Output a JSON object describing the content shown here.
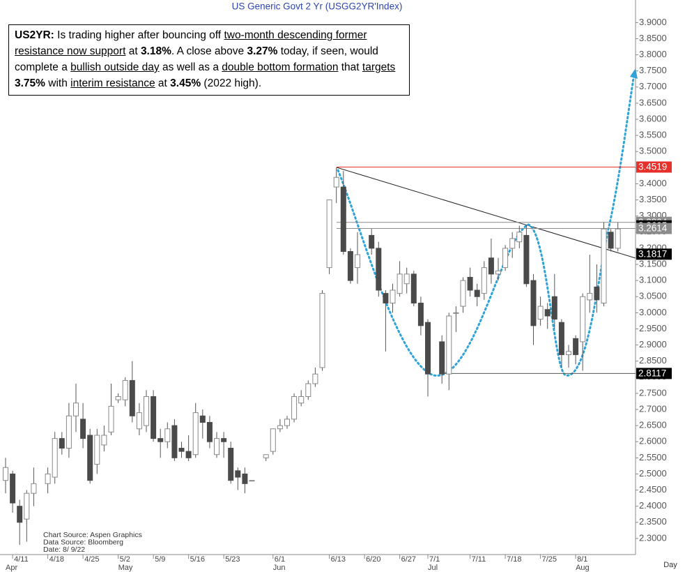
{
  "chart_data": {
    "type": "candlestick",
    "title": "US  Generic  Govt  2  Yr  (USGG2YR'Index)",
    "x_label": "Day",
    "categories": [
      null,
      "4/11",
      null,
      null,
      null,
      null,
      "4/18",
      null,
      null,
      null,
      null,
      "4/25",
      null,
      null,
      null,
      null,
      "5/2",
      null,
      null,
      null,
      null,
      "5/9",
      null,
      null,
      null,
      null,
      "5/16",
      null,
      null,
      null,
      null,
      "5/23",
      null,
      null,
      null,
      null,
      null,
      null,
      "6/1",
      null,
      null,
      null,
      null,
      null,
      null,
      null,
      "6/13",
      null,
      null,
      null,
      null,
      "6/20",
      null,
      null,
      null,
      null,
      "6/27",
      null,
      null,
      null,
      "7/1",
      null,
      null,
      null,
      null,
      null,
      "7/11",
      null,
      null,
      null,
      null,
      "7/18",
      null,
      null,
      null,
      null,
      "7/25",
      null,
      null,
      null,
      null,
      "8/1",
      null,
      null,
      null,
      null,
      null,
      null
    ],
    "months": [
      "Apr",
      null,
      null,
      null,
      null,
      null,
      null,
      null,
      null,
      null,
      null,
      null,
      null,
      null,
      null,
      null,
      "May",
      null,
      null,
      null,
      null,
      null,
      null,
      null,
      null,
      null,
      null,
      null,
      null,
      null,
      null,
      null,
      null,
      null,
      null,
      null,
      null,
      null,
      "Jun",
      null,
      null,
      null,
      null,
      null,
      null,
      null,
      null,
      null,
      null,
      null,
      null,
      null,
      null,
      null,
      null,
      null,
      null,
      null,
      null,
      null,
      "Jul",
      null,
      null,
      null,
      null,
      null,
      null,
      null,
      null,
      null,
      null,
      null,
      null,
      null,
      null,
      null,
      null,
      null,
      null,
      null,
      null,
      "Aug",
      null,
      null,
      null,
      null,
      null,
      null
    ],
    "open": [
      2.48,
      2.5,
      2.4,
      2.36,
      2.44,
      null,
      2.47,
      2.49,
      2.61,
      2.58,
      2.68,
      2.67,
      2.62,
      2.53,
      2.59,
      2.63,
      2.73,
      2.73,
      2.79,
      2.64,
      2.65,
      2.74,
      2.61,
      2.6,
      2.65,
      2.58,
      2.57,
      2.56,
      2.68,
      2.66,
      2.56,
      2.61,
      2.58,
      2.51,
      2.5,
      2.48,
      null,
      2.55,
      2.57,
      2.64,
      2.65,
      2.67,
      2.72,
      2.74,
      2.78,
      2.83,
      3.14,
      3.39,
      3.39,
      3.19,
      3.14,
      null,
      3.24,
      3.2,
      3.06,
      3.03,
      3.06,
      3.09,
      3.12,
      3.03,
      2.97,
      null,
      2.91,
      2.81,
      3.0,
      3.02,
      3.11,
      3.07,
      3.06,
      3.17,
      3.12,
      3.14,
      3.2,
      3.22,
      3.24,
      3.1,
      2.98,
      3.01,
      3.05,
      2.97,
      2.87,
      2.92,
      2.91,
      3.04,
      3.08,
      3.03,
      3.25,
      3.2
    ],
    "high": [
      2.55,
      2.51,
      2.42,
      2.45,
      2.52,
      null,
      2.52,
      2.63,
      2.63,
      2.72,
      2.78,
      2.72,
      2.64,
      2.64,
      2.65,
      2.78,
      2.75,
      2.8,
      2.85,
      2.72,
      2.76,
      2.76,
      2.64,
      2.66,
      2.67,
      2.6,
      2.62,
      2.72,
      2.7,
      2.68,
      2.63,
      2.63,
      2.6,
      2.52,
      2.52,
      2.48,
      null,
      2.56,
      2.64,
      2.67,
      2.68,
      2.75,
      2.76,
      2.79,
      2.83,
      3.07,
      3.35,
      3.45,
      3.44,
      3.2,
      3.25,
      null,
      3.26,
      3.22,
      3.07,
      3.09,
      3.16,
      3.14,
      3.13,
      3.05,
      2.98,
      null,
      2.93,
      3.0,
      3.02,
      3.11,
      3.14,
      3.09,
      3.16,
      3.23,
      3.17,
      3.21,
      3.25,
      3.27,
      3.27,
      3.12,
      3.05,
      3.03,
      3.12,
      2.98,
      2.9,
      2.93,
      3.06,
      3.18,
      3.15,
      3.28,
      3.26,
      3.28
    ],
    "low": [
      2.44,
      2.38,
      2.28,
      2.29,
      2.4,
      null,
      2.44,
      2.47,
      2.56,
      2.55,
      2.63,
      2.58,
      2.47,
      2.5,
      2.57,
      2.62,
      2.72,
      2.71,
      2.66,
      2.62,
      2.63,
      2.6,
      2.55,
      2.58,
      2.54,
      2.55,
      2.54,
      2.55,
      2.61,
      2.58,
      2.55,
      2.55,
      2.47,
      2.45,
      2.44,
      2.48,
      null,
      2.54,
      2.56,
      2.63,
      2.64,
      2.66,
      2.71,
      2.73,
      2.77,
      2.82,
      3.12,
      3.34,
      3.18,
      3.09,
      3.09,
      null,
      3.18,
      3.05,
      2.88,
      3.0,
      3.05,
      3.06,
      3.02,
      2.93,
      2.74,
      null,
      2.78,
      2.76,
      2.94,
      3.0,
      3.05,
      3.02,
      3.04,
      3.09,
      3.1,
      3.13,
      3.17,
      3.2,
      3.08,
      2.9,
      2.96,
      2.95,
      2.95,
      2.83,
      2.83,
      2.84,
      2.82,
      3.0,
      3.0,
      3.02,
      3.19,
      3.19
    ],
    "close": [
      2.52,
      2.41,
      2.35,
      2.44,
      2.47,
      null,
      2.5,
      2.61,
      2.58,
      2.68,
      2.72,
      2.61,
      2.48,
      2.62,
      2.62,
      2.71,
      2.74,
      2.79,
      2.68,
      2.69,
      2.74,
      2.61,
      2.6,
      2.64,
      2.55,
      2.57,
      2.55,
      2.69,
      2.66,
      2.6,
      2.61,
      2.6,
      2.48,
      2.49,
      2.47,
      2.48,
      null,
      2.56,
      2.64,
      2.65,
      2.67,
      2.74,
      2.74,
      2.78,
      2.81,
      3.06,
      3.35,
      3.42,
      3.19,
      3.1,
      3.18,
      null,
      3.2,
      3.07,
      3.03,
      3.07,
      3.12,
      3.12,
      3.03,
      2.96,
      2.81,
      null,
      2.81,
      2.99,
      3.0,
      3.1,
      3.07,
      3.05,
      3.14,
      3.12,
      3.13,
      3.2,
      3.23,
      3.25,
      3.09,
      2.96,
      3.02,
      2.99,
      2.98,
      2.87,
      2.88,
      2.87,
      3.05,
      3.06,
      3.04,
      3.26,
      3.2,
      3.26
    ],
    "up_color": "#ffffff",
    "down_color": "#4a4a4a",
    "ylim": [
      2.25,
      3.97
    ],
    "yticks": [
      {
        "value": 2.3,
        "label": "2.3000"
      },
      {
        "value": 2.35,
        "label": "2.3500"
      },
      {
        "value": 2.4,
        "label": "2.4000"
      },
      {
        "value": 2.45,
        "label": "2.4500"
      },
      {
        "value": 2.5,
        "label": "2.5000"
      },
      {
        "value": 2.55,
        "label": "2.5500"
      },
      {
        "value": 2.6,
        "label": "2.6000"
      },
      {
        "value": 2.65,
        "label": "2.6500"
      },
      {
        "value": 2.7,
        "label": "2.7000"
      },
      {
        "value": 2.75,
        "label": "2.7500"
      },
      {
        "value": 2.8,
        "label": "2.8000"
      },
      {
        "value": 2.85,
        "label": "2.8500"
      },
      {
        "value": 2.9,
        "label": "2.9000"
      },
      {
        "value": 2.95,
        "label": "2.9500"
      },
      {
        "value": 3.0,
        "label": "3.0000"
      },
      {
        "value": 3.05,
        "label": "3.0500"
      },
      {
        "value": 3.1,
        "label": "3.1000"
      },
      {
        "value": 3.15,
        "label": "3.1500"
      },
      {
        "value": 3.2,
        "label": "3.2000"
      },
      {
        "value": 3.25,
        "label": "3.2500"
      },
      {
        "value": 3.3,
        "label": "3.3000"
      },
      {
        "value": 3.35,
        "label": "3.3500"
      },
      {
        "value": 3.4,
        "label": "3.4000"
      },
      {
        "value": 3.45,
        "label": "3.4500"
      },
      {
        "value": 3.5,
        "label": "3.5000"
      },
      {
        "value": 3.55,
        "label": "3.5500"
      },
      {
        "value": 3.6,
        "label": "3.6000"
      },
      {
        "value": 3.65,
        "label": "3.6500"
      },
      {
        "value": 3.7,
        "label": "3.7000"
      },
      {
        "value": 3.75,
        "label": "3.7500"
      },
      {
        "value": 3.8,
        "label": "3.8000"
      },
      {
        "value": 3.85,
        "label": "3.8500"
      },
      {
        "value": 3.9,
        "label": "3.9000"
      }
    ],
    "levels": [
      {
        "value": 3.4519,
        "color": "#e8302a"
      },
      {
        "value": 3.2804,
        "color": "#8c8c8c"
      },
      {
        "value": 3.2695,
        "color": "#000000"
      },
      {
        "value": 3.2614,
        "color": "#8c8c8c"
      },
      {
        "value": 3.1817,
        "color": "#000000"
      },
      {
        "value": 2.8117,
        "color": "#000000"
      }
    ],
    "sources": [
      "Chart  Source:  Aspen  Graphics",
      "Data  Source:  Bloomberg",
      "Date:    8/  9/22"
    ],
    "annotation": {
      "runs": [
        {
          "text": "US2YR:",
          "style": "bold"
        },
        {
          "text": " Is trading higher after bouncing off ",
          "style": "plain"
        },
        {
          "text": "two-month descending former resistance now support",
          "style": "underline"
        },
        {
          "text": " at ",
          "style": "plain"
        },
        {
          "text": "3.18%",
          "style": "bold"
        },
        {
          "text": ". A close above ",
          "style": "plain"
        },
        {
          "text": "3.27%",
          "style": "bold"
        },
        {
          "text": " today, if seen, would complete a ",
          "style": "plain"
        },
        {
          "text": "bullish outside day",
          "style": "underline"
        },
        {
          "text": " as well as a ",
          "style": "plain"
        },
        {
          "text": "double bottom formation",
          "style": "underline"
        },
        {
          "text": " that ",
          "style": "plain"
        },
        {
          "text": "targets",
          "style": "underline"
        },
        {
          "text": " 3.75%",
          "style": "bold"
        },
        {
          "text": " with ",
          "style": "plain"
        },
        {
          "text": "interim resistance",
          "style": "underline"
        },
        {
          "text": " at ",
          "style": "plain"
        },
        {
          "text": "3.45%",
          "style": "bold"
        },
        {
          "text": " (2022 high).",
          "style": "plain"
        }
      ]
    }
  }
}
